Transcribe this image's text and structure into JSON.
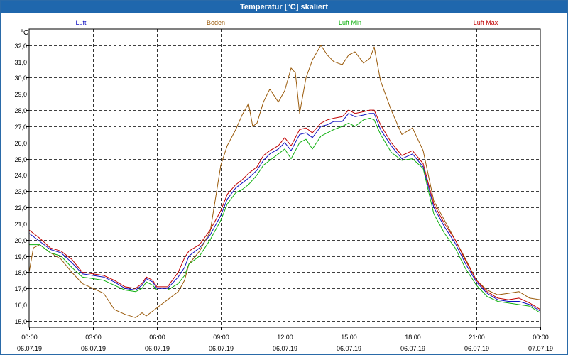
{
  "window": {
    "title": "Temperatur [°C] skaliert"
  },
  "chart_data": {
    "type": "line",
    "title": "Temperatur [°C] skaliert",
    "ylabel": "°C",
    "xlabel": "",
    "ylim": [
      14.6,
      33.0
    ],
    "xlim": [
      0,
      24
    ],
    "grid": true,
    "legend_position": "top",
    "yticks": [
      "15,0",
      "16,0",
      "17,0",
      "18,0",
      "19,0",
      "20,0",
      "21,0",
      "22,0",
      "23,0",
      "24,0",
      "25,0",
      "26,0",
      "27,0",
      "28,0",
      "29,0",
      "30,0",
      "31,0",
      "32,0"
    ],
    "xticks": [
      {
        "time": "00:00",
        "date": "06.07.19"
      },
      {
        "time": "03:00",
        "date": "06.07.19"
      },
      {
        "time": "06:00",
        "date": "06.07.19"
      },
      {
        "time": "09:00",
        "date": "06.07.19"
      },
      {
        "time": "12:00",
        "date": "06.07.19"
      },
      {
        "time": "15:00",
        "date": "06.07.19"
      },
      {
        "time": "18:00",
        "date": "06.07.19"
      },
      {
        "time": "21:00",
        "date": "06.07.19"
      },
      {
        "time": "00:00",
        "date": "07.07.19"
      }
    ],
    "series": [
      {
        "name": "Luft",
        "color": "#1010c0",
        "points": [
          [
            0,
            20.4
          ],
          [
            0.5,
            19.9
          ],
          [
            1,
            19.4
          ],
          [
            1.5,
            19.2
          ],
          [
            2,
            18.6
          ],
          [
            2.5,
            17.9
          ],
          [
            3,
            17.8
          ],
          [
            3.5,
            17.7
          ],
          [
            4,
            17.4
          ],
          [
            4.5,
            17.0
          ],
          [
            5,
            16.9
          ],
          [
            5.3,
            17.2
          ],
          [
            5.5,
            17.6
          ],
          [
            5.8,
            17.4
          ],
          [
            6,
            17.0
          ],
          [
            6.5,
            17.0
          ],
          [
            7,
            17.7
          ],
          [
            7.3,
            18.3
          ],
          [
            7.5,
            19.0
          ],
          [
            8,
            19.5
          ],
          [
            8.5,
            20.3
          ],
          [
            9,
            21.5
          ],
          [
            9.3,
            22.5
          ],
          [
            9.7,
            23.2
          ],
          [
            10,
            23.5
          ],
          [
            10.3,
            23.8
          ],
          [
            10.7,
            24.3
          ],
          [
            11,
            24.9
          ],
          [
            11.3,
            25.3
          ],
          [
            11.7,
            25.6
          ],
          [
            12,
            26.0
          ],
          [
            12.3,
            25.5
          ],
          [
            12.7,
            26.5
          ],
          [
            13,
            26.6
          ],
          [
            13.3,
            26.3
          ],
          [
            13.7,
            27.0
          ],
          [
            14,
            27.1
          ],
          [
            14.3,
            27.3
          ],
          [
            14.7,
            27.3
          ],
          [
            15,
            27.8
          ],
          [
            15.3,
            27.6
          ],
          [
            15.7,
            27.7
          ],
          [
            16,
            27.8
          ],
          [
            16.2,
            27.8
          ],
          [
            16.5,
            26.8
          ],
          [
            17,
            25.8
          ],
          [
            17.5,
            25.0
          ],
          [
            18,
            25.3
          ],
          [
            18.5,
            24.5
          ],
          [
            19,
            22.0
          ],
          [
            19.5,
            20.8
          ],
          [
            20,
            19.8
          ],
          [
            20.5,
            18.5
          ],
          [
            21,
            17.4
          ],
          [
            21.5,
            16.7
          ],
          [
            22,
            16.3
          ],
          [
            22.5,
            16.2
          ],
          [
            23,
            16.2
          ],
          [
            23.5,
            16.0
          ],
          [
            24,
            15.6
          ]
        ]
      },
      {
        "name": "Boden",
        "color": "#9a5a0a",
        "points": [
          [
            0,
            18.0
          ],
          [
            0.2,
            19.5
          ],
          [
            0.5,
            19.7
          ],
          [
            1,
            19.2
          ],
          [
            1.5,
            18.8
          ],
          [
            2,
            18.0
          ],
          [
            2.5,
            17.3
          ],
          [
            3,
            17.0
          ],
          [
            3.5,
            16.7
          ],
          [
            4,
            15.7
          ],
          [
            4.5,
            15.4
          ],
          [
            5,
            15.2
          ],
          [
            5.3,
            15.5
          ],
          [
            5.5,
            15.3
          ],
          [
            6,
            15.8
          ],
          [
            6.5,
            16.3
          ],
          [
            7,
            16.8
          ],
          [
            7.3,
            17.5
          ],
          [
            7.5,
            18.5
          ],
          [
            8,
            19.3
          ],
          [
            8.5,
            20.5
          ],
          [
            9,
            24.6
          ],
          [
            9.3,
            25.8
          ],
          [
            9.7,
            26.8
          ],
          [
            10,
            27.7
          ],
          [
            10.3,
            28.4
          ],
          [
            10.5,
            27.0
          ],
          [
            10.7,
            27.2
          ],
          [
            11,
            28.5
          ],
          [
            11.3,
            29.3
          ],
          [
            11.7,
            28.5
          ],
          [
            12,
            29.2
          ],
          [
            12.3,
            30.6
          ],
          [
            12.5,
            30.3
          ],
          [
            12.7,
            27.8
          ],
          [
            13,
            30.0
          ],
          [
            13.3,
            31.1
          ],
          [
            13.7,
            32.0
          ],
          [
            14,
            31.4
          ],
          [
            14.3,
            31.0
          ],
          [
            14.7,
            30.8
          ],
          [
            15,
            31.4
          ],
          [
            15.3,
            31.6
          ],
          [
            15.7,
            30.9
          ],
          [
            16,
            31.2
          ],
          [
            16.2,
            31.9
          ],
          [
            16.5,
            29.8
          ],
          [
            17,
            28.0
          ],
          [
            17.5,
            26.5
          ],
          [
            18,
            26.9
          ],
          [
            18.5,
            25.5
          ],
          [
            19,
            22.4
          ],
          [
            19.5,
            21.2
          ],
          [
            20,
            20.0
          ],
          [
            20.5,
            18.8
          ],
          [
            21,
            17.5
          ],
          [
            21.5,
            16.9
          ],
          [
            22,
            16.6
          ],
          [
            22.5,
            16.7
          ],
          [
            23,
            16.8
          ],
          [
            23.5,
            16.4
          ],
          [
            24,
            16.3
          ]
        ]
      },
      {
        "name": "Luft Min",
        "color": "#10b010",
        "points": [
          [
            0,
            19.7
          ],
          [
            0.5,
            19.7
          ],
          [
            1,
            19.2
          ],
          [
            1.5,
            19.0
          ],
          [
            2,
            18.3
          ],
          [
            2.5,
            17.7
          ],
          [
            3,
            17.6
          ],
          [
            3.5,
            17.5
          ],
          [
            4,
            17.2
          ],
          [
            4.5,
            16.9
          ],
          [
            5,
            16.8
          ],
          [
            5.3,
            17.0
          ],
          [
            5.5,
            17.4
          ],
          [
            5.8,
            17.2
          ],
          [
            6,
            16.9
          ],
          [
            6.5,
            16.9
          ],
          [
            7,
            17.3
          ],
          [
            7.3,
            17.8
          ],
          [
            7.5,
            18.5
          ],
          [
            8,
            19.0
          ],
          [
            8.5,
            20.0
          ],
          [
            9,
            21.2
          ],
          [
            9.3,
            22.2
          ],
          [
            9.7,
            22.9
          ],
          [
            10,
            23.1
          ],
          [
            10.3,
            23.4
          ],
          [
            10.7,
            24.0
          ],
          [
            11,
            24.6
          ],
          [
            11.3,
            24.9
          ],
          [
            11.7,
            25.3
          ],
          [
            12,
            25.6
          ],
          [
            12.3,
            25.0
          ],
          [
            12.7,
            26.0
          ],
          [
            13,
            26.2
          ],
          [
            13.3,
            25.6
          ],
          [
            13.7,
            26.4
          ],
          [
            14,
            26.6
          ],
          [
            14.3,
            26.8
          ],
          [
            14.7,
            27.0
          ],
          [
            15,
            27.2
          ],
          [
            15.3,
            27.0
          ],
          [
            15.7,
            27.4
          ],
          [
            16,
            27.5
          ],
          [
            16.2,
            27.4
          ],
          [
            16.5,
            26.5
          ],
          [
            17,
            25.4
          ],
          [
            17.5,
            24.9
          ],
          [
            18,
            25.0
          ],
          [
            18.5,
            24.4
          ],
          [
            19,
            21.6
          ],
          [
            19.5,
            20.4
          ],
          [
            20,
            19.5
          ],
          [
            20.5,
            18.2
          ],
          [
            21,
            17.2
          ],
          [
            21.5,
            16.5
          ],
          [
            22,
            16.2
          ],
          [
            22.5,
            16.1
          ],
          [
            23,
            16.0
          ],
          [
            23.5,
            15.9
          ],
          [
            24,
            15.5
          ]
        ]
      },
      {
        "name": "Luft Max",
        "color": "#c00000",
        "points": [
          [
            0,
            20.6
          ],
          [
            0.5,
            20.1
          ],
          [
            1,
            19.5
          ],
          [
            1.5,
            19.3
          ],
          [
            2,
            18.8
          ],
          [
            2.5,
            18.0
          ],
          [
            3,
            17.9
          ],
          [
            3.5,
            17.8
          ],
          [
            4,
            17.5
          ],
          [
            4.5,
            17.1
          ],
          [
            5,
            17.0
          ],
          [
            5.3,
            17.3
          ],
          [
            5.5,
            17.7
          ],
          [
            5.8,
            17.5
          ],
          [
            6,
            17.1
          ],
          [
            6.5,
            17.1
          ],
          [
            7,
            18.0
          ],
          [
            7.3,
            18.9
          ],
          [
            7.5,
            19.3
          ],
          [
            8,
            19.7
          ],
          [
            8.5,
            20.6
          ],
          [
            9,
            21.8
          ],
          [
            9.3,
            22.8
          ],
          [
            9.7,
            23.4
          ],
          [
            10,
            23.7
          ],
          [
            10.3,
            24.1
          ],
          [
            10.7,
            24.5
          ],
          [
            11,
            25.2
          ],
          [
            11.3,
            25.5
          ],
          [
            11.7,
            25.8
          ],
          [
            12,
            26.3
          ],
          [
            12.3,
            25.8
          ],
          [
            12.7,
            26.8
          ],
          [
            13,
            26.9
          ],
          [
            13.3,
            26.6
          ],
          [
            13.7,
            27.2
          ],
          [
            14,
            27.4
          ],
          [
            14.3,
            27.5
          ],
          [
            14.7,
            27.6
          ],
          [
            15,
            28.0
          ],
          [
            15.3,
            27.8
          ],
          [
            15.7,
            27.9
          ],
          [
            16,
            28.0
          ],
          [
            16.2,
            28.0
          ],
          [
            16.5,
            27.1
          ],
          [
            17,
            26.0
          ],
          [
            17.5,
            25.2
          ],
          [
            18,
            25.5
          ],
          [
            18.5,
            24.7
          ],
          [
            19,
            22.2
          ],
          [
            19.5,
            21.0
          ],
          [
            20,
            20.0
          ],
          [
            20.5,
            18.7
          ],
          [
            21,
            17.5
          ],
          [
            21.5,
            16.8
          ],
          [
            22,
            16.4
          ],
          [
            22.5,
            16.3
          ],
          [
            23,
            16.4
          ],
          [
            23.5,
            16.1
          ],
          [
            24,
            15.7
          ]
        ]
      }
    ]
  }
}
